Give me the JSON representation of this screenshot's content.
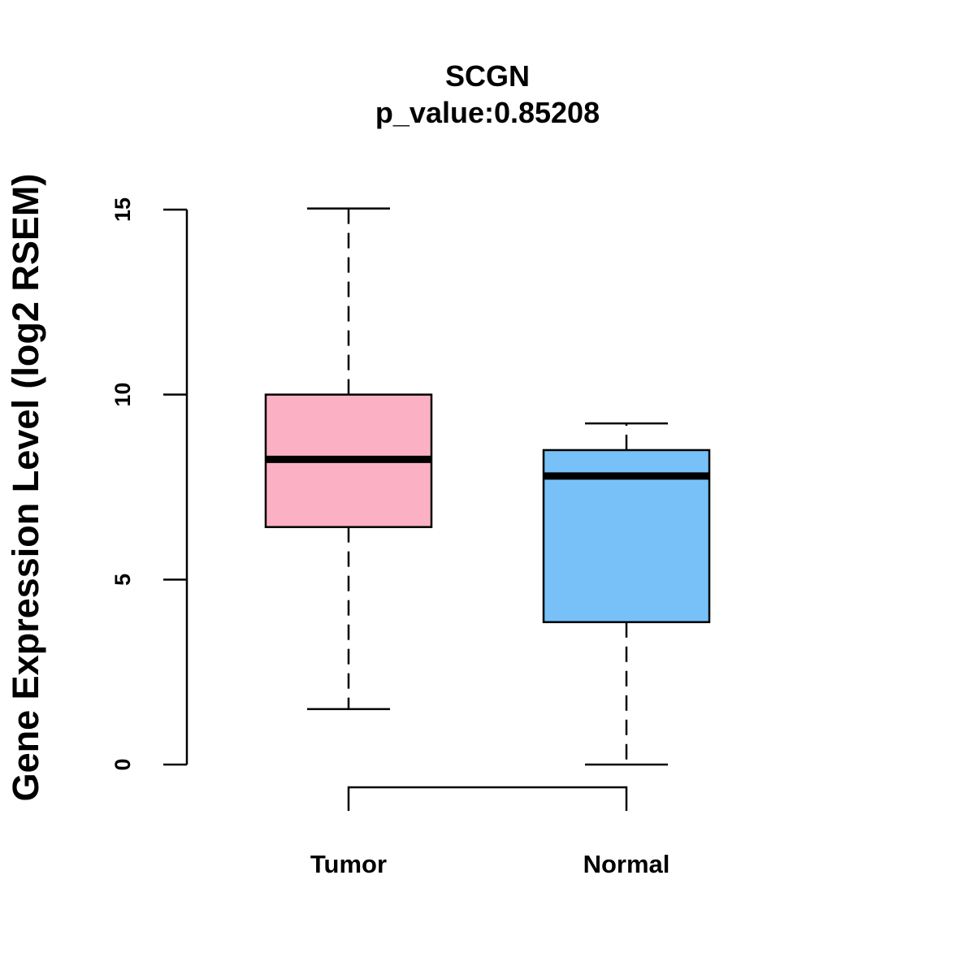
{
  "chart_data": {
    "type": "boxplot",
    "title": "SCGN",
    "subtitle": "p_value:0.85208",
    "xlabel": "",
    "ylabel": "Gene Expression Level (log2 RSEM)",
    "ylim": [
      0,
      15
    ],
    "yticks": [
      0,
      5,
      10,
      15
    ],
    "grid": false,
    "categories": [
      "Tumor",
      "Normal"
    ],
    "series": [
      {
        "name": "Tumor",
        "color": "#FBB1C3",
        "whisker_low": 1.5,
        "q1": 6.42,
        "median": 8.25,
        "q3": 10.0,
        "whisker_high": 15.03
      },
      {
        "name": "Normal",
        "color": "#77C1F8",
        "whisker_low": 0.0,
        "q1": 3.85,
        "median": 7.8,
        "q3": 8.5,
        "whisker_high": 9.22
      }
    ],
    "comparison_bracket": [
      "Tumor",
      "Normal"
    ]
  }
}
